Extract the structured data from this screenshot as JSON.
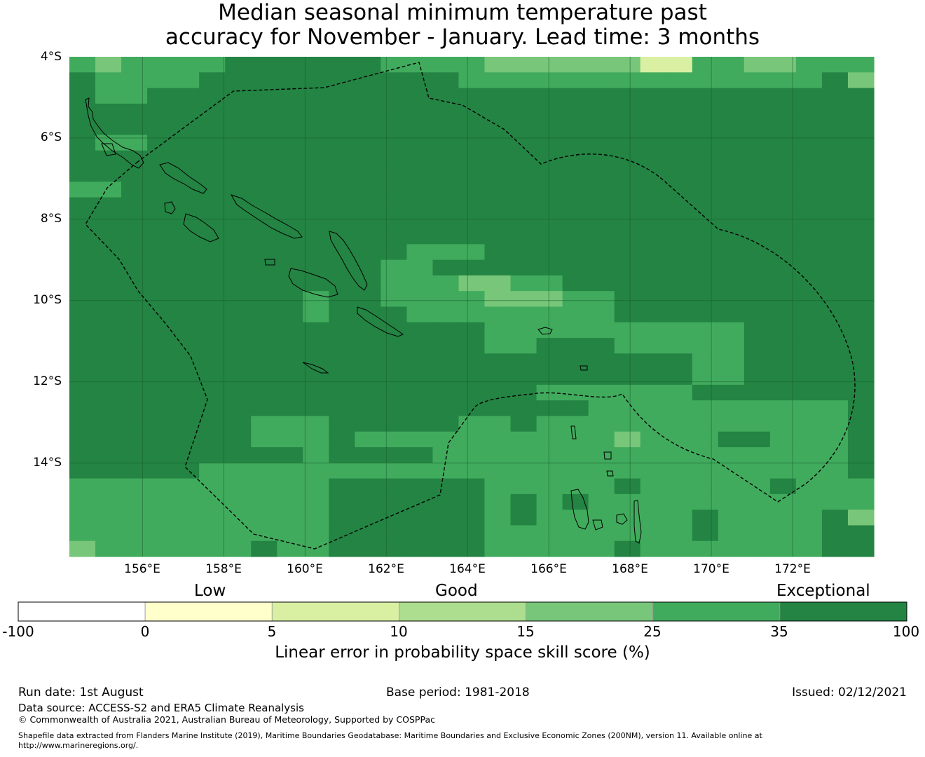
{
  "title_line1": "Median seasonal minimum temperature past",
  "title_line2": "accuracy for November - January. Lead time: 3 months",
  "map": {
    "lat_labels": [
      "4°S",
      "6°S",
      "8°S",
      "10°S",
      "12°S",
      "14°S"
    ],
    "lon_labels": [
      "156°E",
      "158°E",
      "160°E",
      "162°E",
      "164°E",
      "166°E",
      "168°E",
      "170°E",
      "172°E"
    ],
    "extent": {
      "lon_min": 154.2,
      "lon_max": 174.0,
      "lat_min": -16.3,
      "lat_max": -4.0
    },
    "grid_res_deg": 0.83,
    "cell_colors": {
      "0": "#ffffff",
      "1": "#ffffcc",
      "2": "#d9f0a3",
      "3": "#addd8e",
      "4": "#78c679",
      "5": "#41ab5d",
      "6": "#238443"
    },
    "cells": [
      "5455556666665555444444225544555",
      "6555566666666665555555555555564",
      "6556666666666666666666666666666",
      "6666666666666666666666666666666",
      "6666666666666666666666666666666",
      "6556666666666666666666666666666",
      "6666666666666666666666666666666",
      "6666666666666666666666666666666",
      "5566666666666666666666666666666",
      "6666666666666666666666666666666",
      "6666666666666666666666666666666",
      "6666666666666666666666666666666",
      "6666666666666555666666666666666",
      "6666666666665566666666666666666",
      "6666666666665554455666666666666",
      "6666666665665555444556666666666",
      "6666666665666555555556666666666",
      "6666666666666666555555555566666",
      "6666666666666666556665555566666",
      "6666666666666666666666665566666",
      "6666666666666666666666665566666",
      "6666666666666666665555556666666",
      "6666666666666666666655555555556",
      "6666666555666665565555555555556",
      "6666666555655555555554555665556",
      "6666666665666655555555555555556",
      "6666655555555555555555555555556",
      "5555555555666666555556555556555",
      "5555555555666666565655555555555",
      "5555555555666666565555556555564",
      "5555555555666666555555556555566",
      "4555555655666666555556555555566"
    ]
  },
  "colorbar": {
    "categories": [
      "Low",
      "Good",
      "Exceptional"
    ],
    "ticks": [
      "-100",
      "0",
      "5",
      "10",
      "15",
      "25",
      "35",
      "100"
    ],
    "colors": [
      "#ffffff",
      "#ffffcc",
      "#d9f0a3",
      "#addd8e",
      "#78c679",
      "#41ab5d",
      "#238443"
    ],
    "title": "Linear error in probability space skill score (%)"
  },
  "footer": {
    "run_date": "Run date: 1st August",
    "base_period": "Base period: 1981-2018",
    "issued": "Issued: 02/12/2021",
    "data_source": "Data source: ACCESS-S2 and ERA5 Climate Reanalysis",
    "copyright": "© Commonwealth of Australia 2021, Australian Bureau of Meteorology, Supported by COSPPac",
    "shapefile_line1": "Shapefile data extracted from Flanders Marine Institute (2019), Maritime Boundaries Geodatabase: Maritime Boundaries and Exclusive Economic Zones (200NM), version 11. Available online at",
    "shapefile_line2": "http://www.marineregions.org/."
  }
}
